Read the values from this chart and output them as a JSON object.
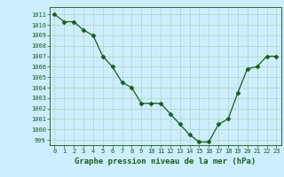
{
  "x": [
    0,
    1,
    2,
    3,
    4,
    5,
    6,
    7,
    8,
    9,
    10,
    11,
    12,
    13,
    14,
    15,
    16,
    17,
    18,
    19,
    20,
    21,
    22,
    23
  ],
  "y": [
    1011,
    1010.3,
    1010.3,
    1009.5,
    1009,
    1007,
    1006,
    1004.5,
    1004,
    1002.5,
    1002.5,
    1002.5,
    1001.5,
    1000.5,
    999.5,
    998.8,
    998.8,
    1000.5,
    1001,
    1003.5,
    1005.8,
    1006,
    1007,
    1007
  ],
  "line_color": "#1a5c1a",
  "marker": "D",
  "markersize": 2.5,
  "bg_color": "#cceeff",
  "grid_color": "#aaccaa",
  "ylabel_ticks": [
    999,
    1000,
    1001,
    1002,
    1003,
    1004,
    1005,
    1006,
    1007,
    1008,
    1009,
    1010,
    1011
  ],
  "ylim": [
    998.5,
    1011.7
  ],
  "xlim": [
    -0.5,
    23.5
  ],
  "xlabel": "Graphe pression niveau de la mer (hPa)",
  "xlabel_color": "#1a5c1a",
  "tick_color": "#1a5c1a",
  "label_fontsize": 6.5,
  "spine_color": "#336633"
}
